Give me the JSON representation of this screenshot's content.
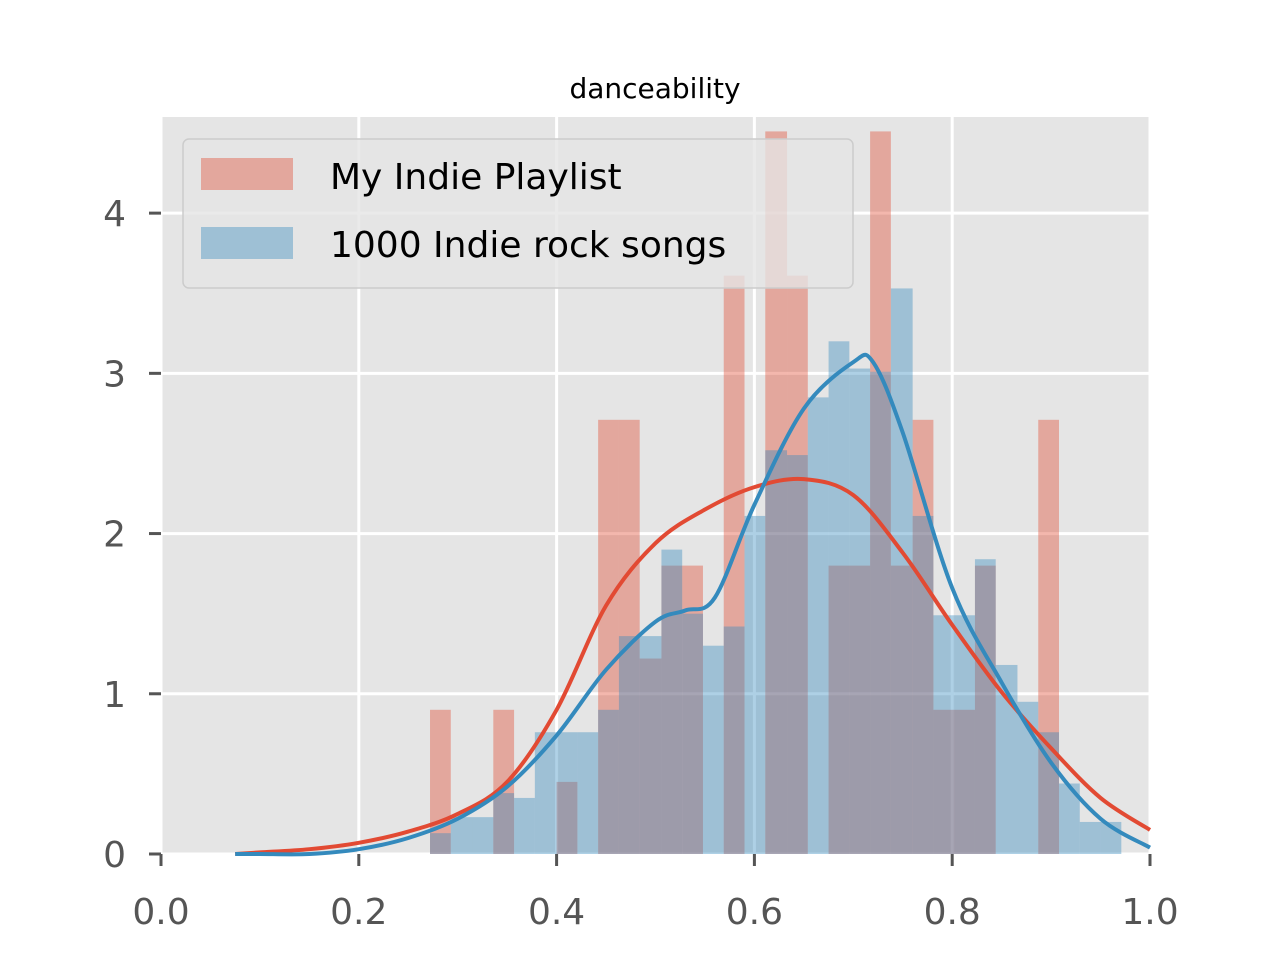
{
  "chart_data": {
    "type": "histogram-kde",
    "title": "danceability",
    "xlabel": "",
    "ylabel": "",
    "xlim": [
      0.0,
      1.0
    ],
    "ylim": [
      0,
      4.6
    ],
    "x_ticks": [
      "0.0",
      "0.2",
      "0.4",
      "0.6",
      "0.8",
      "1.0"
    ],
    "y_ticks": [
      "0",
      "1",
      "2",
      "3",
      "4"
    ],
    "grid": true,
    "legend_position": "top-left",
    "series": [
      {
        "name": "My Indie Playlist",
        "color": "#E24A33",
        "bins": [
          {
            "x0": 0.272,
            "x1": 0.293,
            "y": 0.9
          },
          {
            "x0": 0.336,
            "x1": 0.357,
            "y": 0.9
          },
          {
            "x0": 0.4,
            "x1": 0.421,
            "y": 0.45
          },
          {
            "x0": 0.442,
            "x1": 0.463,
            "y": 2.71
          },
          {
            "x0": 0.463,
            "x1": 0.484,
            "y": 2.71
          },
          {
            "x0": 0.484,
            "x1": 0.506,
            "y": 1.22
          },
          {
            "x0": 0.506,
            "x1": 0.527,
            "y": 1.8
          },
          {
            "x0": 0.527,
            "x1": 0.548,
            "y": 1.8
          },
          {
            "x0": 0.569,
            "x1": 0.59,
            "y": 3.61
          },
          {
            "x0": 0.611,
            "x1": 0.633,
            "y": 4.51
          },
          {
            "x0": 0.633,
            "x1": 0.654,
            "y": 3.61
          },
          {
            "x0": 0.675,
            "x1": 0.696,
            "y": 1.8
          },
          {
            "x0": 0.696,
            "x1": 0.717,
            "y": 1.8
          },
          {
            "x0": 0.717,
            "x1": 0.738,
            "y": 4.51
          },
          {
            "x0": 0.738,
            "x1": 0.76,
            "y": 1.8
          },
          {
            "x0": 0.76,
            "x1": 0.781,
            "y": 2.71
          },
          {
            "x0": 0.781,
            "x1": 0.802,
            "y": 0.9
          },
          {
            "x0": 0.802,
            "x1": 0.823,
            "y": 0.9
          },
          {
            "x0": 0.823,
            "x1": 0.844,
            "y": 1.8
          },
          {
            "x0": 0.887,
            "x1": 0.908,
            "y": 2.71
          }
        ],
        "kde": {
          "x": [
            0.075,
            0.1,
            0.15,
            0.2,
            0.25,
            0.3,
            0.35,
            0.4,
            0.45,
            0.5,
            0.55,
            0.6,
            0.65,
            0.7,
            0.75,
            0.8,
            0.85,
            0.9,
            0.95,
            1.0
          ],
          "y": [
            0.0,
            0.01,
            0.03,
            0.07,
            0.14,
            0.25,
            0.45,
            0.9,
            1.55,
            1.94,
            2.15,
            2.29,
            2.34,
            2.24,
            1.88,
            1.43,
            1.01,
            0.66,
            0.35,
            0.15
          ]
        }
      },
      {
        "name": "1000 Indie rock songs",
        "color": "#348ABD",
        "bins": [
          {
            "x0": 0.272,
            "x1": 0.293,
            "y": 0.13
          },
          {
            "x0": 0.293,
            "x1": 0.315,
            "y": 0.23
          },
          {
            "x0": 0.315,
            "x1": 0.336,
            "y": 0.23
          },
          {
            "x0": 0.336,
            "x1": 0.357,
            "y": 0.38
          },
          {
            "x0": 0.357,
            "x1": 0.378,
            "y": 0.35
          },
          {
            "x0": 0.378,
            "x1": 0.4,
            "y": 0.76
          },
          {
            "x0": 0.4,
            "x1": 0.421,
            "y": 0.76
          },
          {
            "x0": 0.421,
            "x1": 0.442,
            "y": 0.76
          },
          {
            "x0": 0.442,
            "x1": 0.463,
            "y": 0.9
          },
          {
            "x0": 0.463,
            "x1": 0.484,
            "y": 1.36
          },
          {
            "x0": 0.484,
            "x1": 0.506,
            "y": 1.36
          },
          {
            "x0": 0.506,
            "x1": 0.527,
            "y": 1.9
          },
          {
            "x0": 0.527,
            "x1": 0.548,
            "y": 1.5
          },
          {
            "x0": 0.548,
            "x1": 0.569,
            "y": 1.3
          },
          {
            "x0": 0.569,
            "x1": 0.59,
            "y": 1.42
          },
          {
            "x0": 0.59,
            "x1": 0.611,
            "y": 2.11
          },
          {
            "x0": 0.611,
            "x1": 0.633,
            "y": 2.52
          },
          {
            "x0": 0.633,
            "x1": 0.654,
            "y": 2.49
          },
          {
            "x0": 0.654,
            "x1": 0.675,
            "y": 2.85
          },
          {
            "x0": 0.675,
            "x1": 0.696,
            "y": 3.2
          },
          {
            "x0": 0.696,
            "x1": 0.717,
            "y": 3.03
          },
          {
            "x0": 0.717,
            "x1": 0.738,
            "y": 3.01
          },
          {
            "x0": 0.738,
            "x1": 0.76,
            "y": 3.53
          },
          {
            "x0": 0.76,
            "x1": 0.781,
            "y": 2.11
          },
          {
            "x0": 0.781,
            "x1": 0.802,
            "y": 1.49
          },
          {
            "x0": 0.802,
            "x1": 0.823,
            "y": 1.49
          },
          {
            "x0": 0.823,
            "x1": 0.844,
            "y": 1.84
          },
          {
            "x0": 0.844,
            "x1": 0.866,
            "y": 1.18
          },
          {
            "x0": 0.866,
            "x1": 0.887,
            "y": 0.95
          },
          {
            "x0": 0.887,
            "x1": 0.908,
            "y": 0.76
          },
          {
            "x0": 0.908,
            "x1": 0.929,
            "y": 0.44
          },
          {
            "x0": 0.929,
            "x1": 0.95,
            "y": 0.2
          },
          {
            "x0": 0.95,
            "x1": 0.971,
            "y": 0.2
          }
        ],
        "kde": {
          "x": [
            0.075,
            0.1,
            0.15,
            0.2,
            0.25,
            0.3,
            0.35,
            0.4,
            0.45,
            0.5,
            0.53,
            0.56,
            0.6,
            0.65,
            0.7,
            0.72,
            0.75,
            0.8,
            0.85,
            0.9,
            0.95,
            1.0
          ],
          "y": [
            0.0,
            0.0,
            0.0,
            0.03,
            0.1,
            0.22,
            0.42,
            0.74,
            1.15,
            1.45,
            1.52,
            1.6,
            2.18,
            2.78,
            3.07,
            3.07,
            2.63,
            1.66,
            1.07,
            0.57,
            0.22,
            0.04
          ]
        }
      }
    ]
  }
}
